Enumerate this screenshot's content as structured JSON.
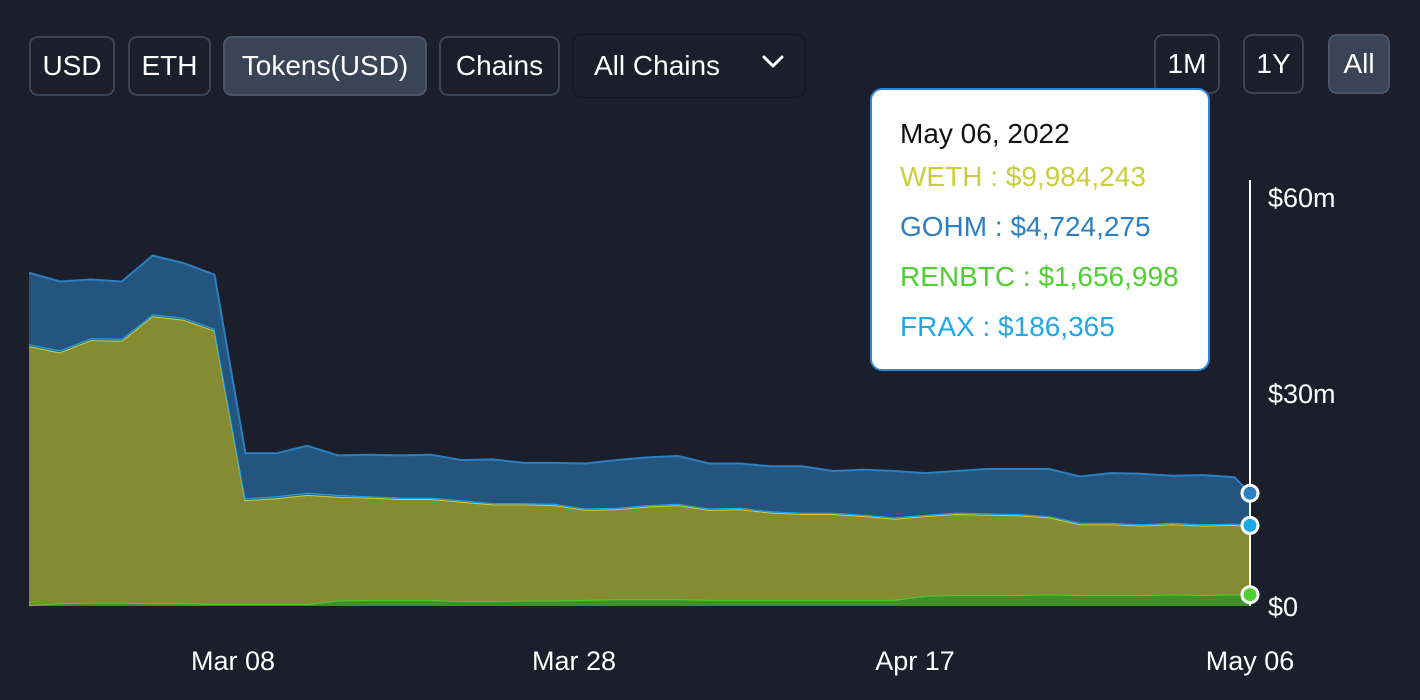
{
  "toolbar": {
    "denomination_buttons": [
      {
        "label": "USD",
        "active": false
      },
      {
        "label": "ETH",
        "active": false
      },
      {
        "label": "Tokens(USD)",
        "active": true
      },
      {
        "label": "Chains",
        "active": false
      }
    ],
    "chain_select": {
      "value": "All Chains"
    },
    "range_buttons": [
      {
        "label": "1M",
        "active": false
      },
      {
        "label": "1Y",
        "active": false
      },
      {
        "label": "All",
        "active": true
      }
    ]
  },
  "tooltip": {
    "date": "May 06, 2022",
    "rows": [
      {
        "label": "WETH : $9,984,243",
        "color": "#c9cf3a"
      },
      {
        "label": "GOHM : $4,724,275",
        "color": "#2c7fc0"
      },
      {
        "label": "RENBTC : $1,656,998",
        "color": "#4fcf32"
      },
      {
        "label": "FRAX : $186,365",
        "color": "#1fa8e8"
      }
    ]
  },
  "chart_data": {
    "type": "area",
    "stacked": true,
    "x_tick_labels": [
      "Mar 08",
      "Mar 28",
      "Apr 17",
      "May 06"
    ],
    "y_tick_labels": [
      "$60m",
      "$30m",
      "$0"
    ],
    "ylim": [
      0,
      60
    ],
    "y_unit": "$m",
    "x": [
      "2022-02-16",
      "2022-02-18",
      "2022-02-20",
      "2022-02-22",
      "2022-02-24",
      "2022-02-26",
      "2022-02-28",
      "2022-03-02",
      "2022-03-04",
      "2022-03-06",
      "2022-03-08",
      "2022-03-10",
      "2022-03-12",
      "2022-03-14",
      "2022-03-16",
      "2022-03-18",
      "2022-03-20",
      "2022-03-22",
      "2022-03-24",
      "2022-03-26",
      "2022-03-28",
      "2022-03-30",
      "2022-04-01",
      "2022-04-03",
      "2022-04-05",
      "2022-04-07",
      "2022-04-09",
      "2022-04-11",
      "2022-04-13",
      "2022-04-15",
      "2022-04-17",
      "2022-04-19",
      "2022-04-21",
      "2022-04-23",
      "2022-04-25",
      "2022-04-27",
      "2022-04-29",
      "2022-05-01",
      "2022-05-03",
      "2022-05-05",
      "2022-05-06"
    ],
    "series": [
      {
        "name": "RENBTC",
        "color": "#4fcf32",
        "values": [
          0.1,
          0.4,
          0.5,
          0.5,
          0.4,
          0.4,
          0.3,
          0.3,
          0.3,
          0.3,
          0.8,
          0.9,
          0.9,
          0.9,
          0.7,
          0.7,
          0.8,
          0.8,
          0.9,
          1.0,
          1.0,
          1.0,
          0.9,
          0.9,
          0.9,
          0.9,
          0.9,
          0.9,
          0.9,
          1.5,
          1.6,
          1.6,
          1.6,
          1.7,
          1.6,
          1.6,
          1.6,
          1.7,
          1.6,
          1.7,
          1.66
        ]
      },
      {
        "name": "WETH",
        "color": "#c9cf3a",
        "values": [
          38.0,
          36.8,
          38.5,
          38.4,
          42.1,
          41.6,
          40.1,
          15.2,
          15.5,
          16.0,
          15.2,
          15.0,
          14.8,
          14.8,
          14.6,
          14.2,
          14.1,
          14.0,
          13.2,
          13.2,
          13.6,
          13.8,
          13.2,
          13.3,
          12.8,
          12.6,
          12.6,
          12.3,
          11.9,
          11.7,
          11.9,
          11.8,
          11.7,
          11.3,
          10.4,
          10.4,
          10.2,
          10.3,
          10.2,
          10.2,
          9.98
        ]
      },
      {
        "name": "FRAX",
        "color": "#1fa8e8",
        "values": [
          0.3,
          0.3,
          0.3,
          0.3,
          0.3,
          0.3,
          0.3,
          0.3,
          0.3,
          0.3,
          0.3,
          0.2,
          0.2,
          0.2,
          0.2,
          0.2,
          0.2,
          0.2,
          0.2,
          0.2,
          0.2,
          0.2,
          0.2,
          0.2,
          0.2,
          0.2,
          0.2,
          0.2,
          0.2,
          0.2,
          0.2,
          0.2,
          0.2,
          0.2,
          0.2,
          0.2,
          0.2,
          0.2,
          0.2,
          0.2,
          0.19
        ]
      },
      {
        "name": "GOHM",
        "color": "#2c7fc0",
        "values": [
          10.5,
          10.1,
          8.6,
          8.4,
          8.6,
          8.0,
          7.9,
          6.6,
          6.3,
          6.9,
          5.8,
          6.1,
          6.2,
          6.3,
          5.9,
          6.4,
          5.9,
          6.0,
          6.6,
          7.0,
          7.0,
          7.0,
          6.6,
          6.5,
          6.6,
          6.8,
          6.1,
          6.6,
          6.8,
          6.1,
          6.1,
          6.5,
          6.6,
          6.9,
          6.8,
          7.3,
          7.4,
          6.9,
          7.2,
          6.8,
          4.72
        ]
      }
    ]
  }
}
